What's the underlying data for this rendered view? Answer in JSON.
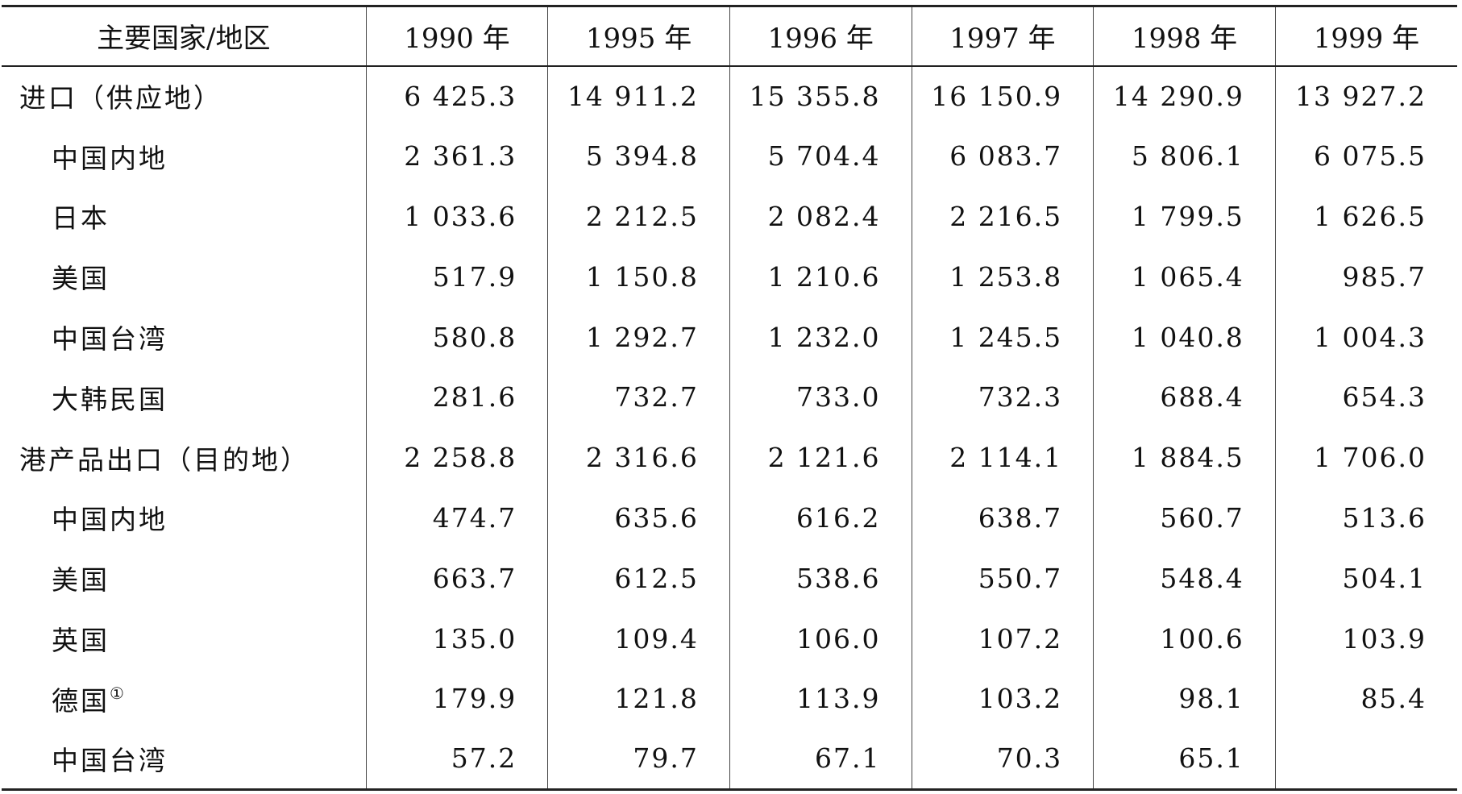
{
  "table": {
    "headers": [
      "主要国家/地区",
      "1990 年",
      "1995 年",
      "1996 年",
      "1997 年",
      "1998 年",
      "1999 年"
    ],
    "rows": [
      {
        "label": "进口（供应地）",
        "level": 0,
        "footnote": "",
        "values": [
          "6 425.3",
          "14 911.2",
          "15 355.8",
          "16 150.9",
          "14 290.9",
          "13 927.2"
        ]
      },
      {
        "label": "中国内地",
        "level": 1,
        "footnote": "",
        "values": [
          "2 361.3",
          "5 394.8",
          "5 704.4",
          "6 083.7",
          "5 806.1",
          "6 075.5"
        ]
      },
      {
        "label": "日本",
        "level": 1,
        "footnote": "",
        "values": [
          "1 033.6",
          "2 212.5",
          "2 082.4",
          "2 216.5",
          "1 799.5",
          "1 626.5"
        ]
      },
      {
        "label": "美国",
        "level": 1,
        "footnote": "",
        "values": [
          "517.9",
          "1 150.8",
          "1 210.6",
          "1 253.8",
          "1 065.4",
          "985.7"
        ]
      },
      {
        "label": "中国台湾",
        "level": 1,
        "footnote": "",
        "values": [
          "580.8",
          "1 292.7",
          "1 232.0",
          "1 245.5",
          "1 040.8",
          "1 004.3"
        ]
      },
      {
        "label": "大韩民国",
        "level": 1,
        "footnote": "",
        "values": [
          "281.6",
          "732.7",
          "733.0",
          "732.3",
          "688.4",
          "654.3"
        ]
      },
      {
        "label": "港产品出口（目的地）",
        "level": 0,
        "footnote": "",
        "values": [
          "2 258.8",
          "2 316.6",
          "2 121.6",
          "2 114.1",
          "1 884.5",
          "1 706.0"
        ]
      },
      {
        "label": "中国内地",
        "level": 1,
        "footnote": "",
        "values": [
          "474.7",
          "635.6",
          "616.2",
          "638.7",
          "560.7",
          "513.6"
        ]
      },
      {
        "label": "美国",
        "level": 1,
        "footnote": "",
        "values": [
          "663.7",
          "612.5",
          "538.6",
          "550.7",
          "548.4",
          "504.1"
        ]
      },
      {
        "label": "英国",
        "level": 1,
        "footnote": "",
        "values": [
          "135.0",
          "109.4",
          "106.0",
          "107.2",
          "100.6",
          "103.9"
        ]
      },
      {
        "label": "德国",
        "level": 1,
        "footnote": "①",
        "values": [
          "179.9",
          "121.8",
          "113.9",
          "103.2",
          "98.1",
          "85.4"
        ]
      },
      {
        "label": "中国台湾",
        "level": 1,
        "footnote": "",
        "values": [
          "57.2",
          "79.7",
          "67.1",
          "70.3",
          "65.1",
          ""
        ]
      }
    ]
  }
}
